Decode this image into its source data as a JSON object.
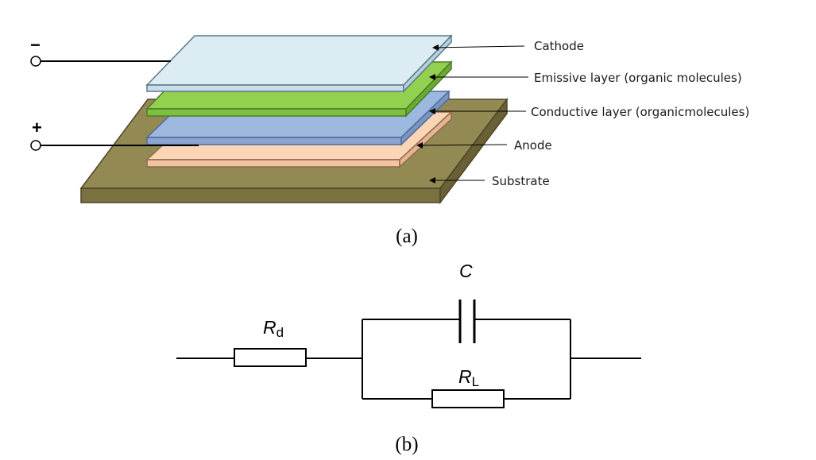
{
  "part_a": {
    "caption": "(a)",
    "terminals": {
      "negative": "−",
      "positive": "+"
    },
    "layers": [
      {
        "label": "Cathode",
        "color": "#dcecf3"
      },
      {
        "label": "Emissive layer (organic molecules)",
        "color": "#92d050"
      },
      {
        "label": "Conductive layer (organicmolecules)",
        "color": "#9db8de"
      },
      {
        "label": "Anode",
        "color": "#fbd5b5"
      },
      {
        "label": "Substrate",
        "color": "#938953"
      }
    ]
  },
  "part_b": {
    "caption": "(b)",
    "components": {
      "resistor_d": {
        "symbol": "R",
        "subscript": "d"
      },
      "capacitor": {
        "symbol": "C"
      },
      "resistor_l": {
        "symbol": "R",
        "subscript": "L"
      }
    }
  }
}
